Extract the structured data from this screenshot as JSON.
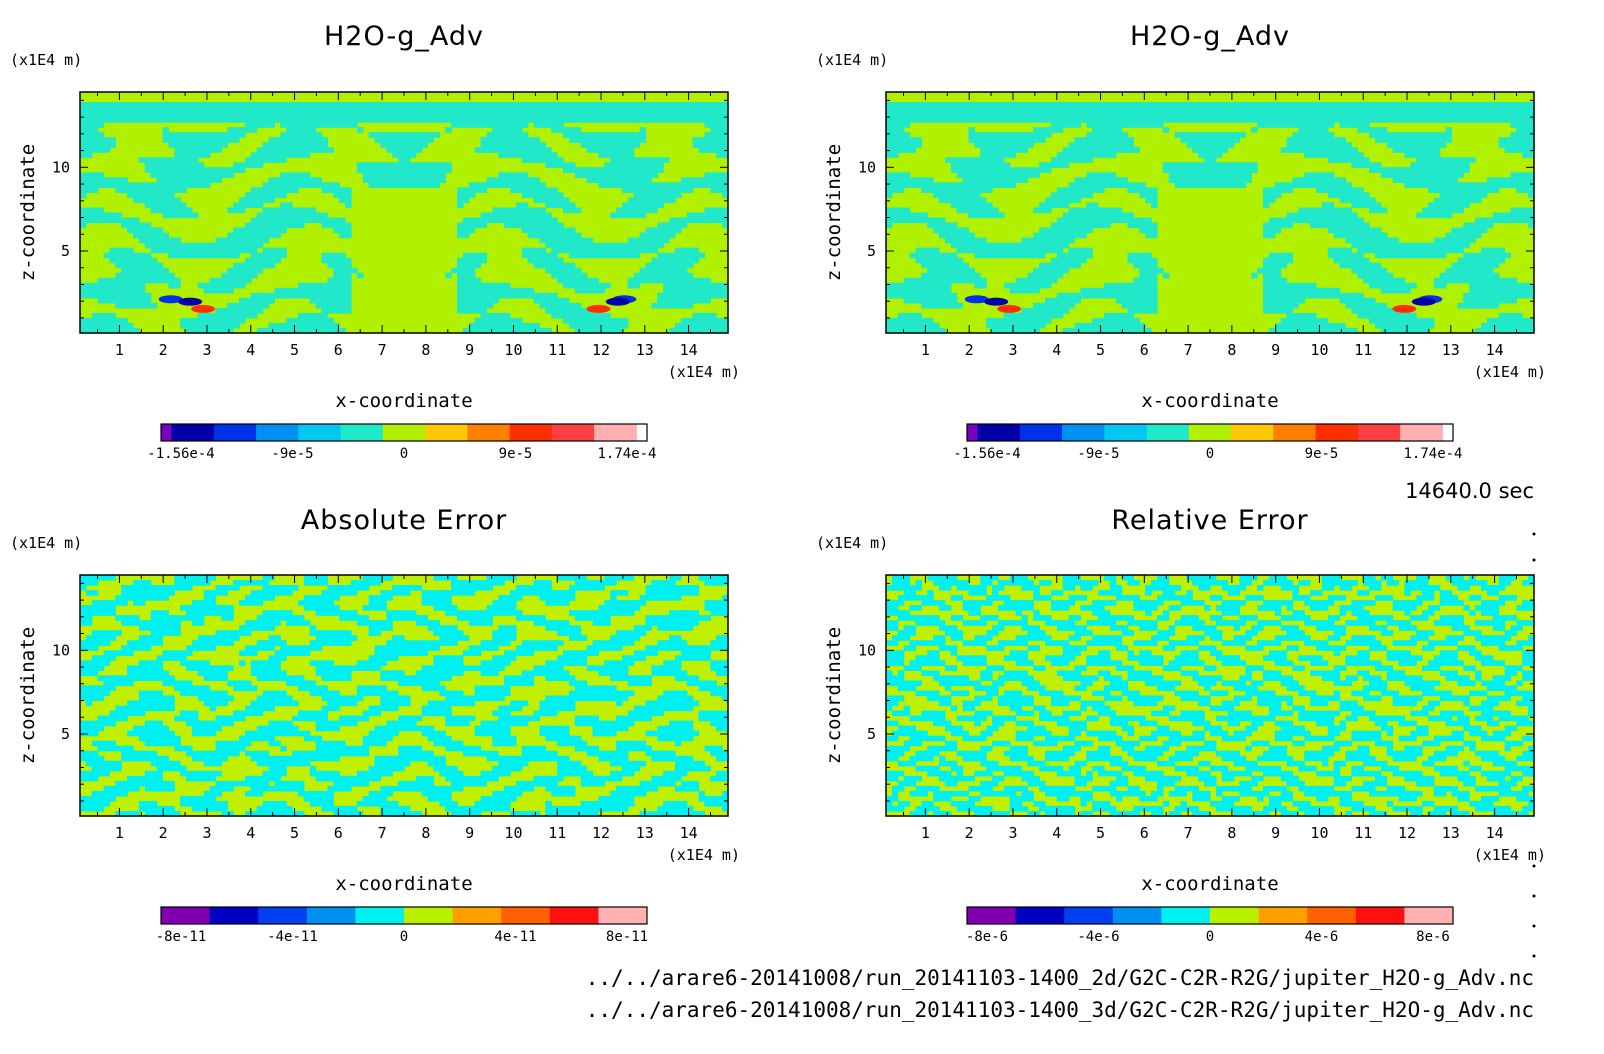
{
  "chart_data": [
    {
      "type": "heatmap",
      "title": "H2O-g_Adv",
      "xlabel": "x-coordinate",
      "ylabel": "z-coordinate",
      "x_unit": "(x1E4 m)",
      "y_unit": "(x1E4 m)",
      "xlim": [
        0.1,
        14.9
      ],
      "ylim": [
        0.1,
        14.5
      ],
      "x_ticks": [
        "1",
        "2",
        "3",
        "4",
        "5",
        "6",
        "7",
        "8",
        "9",
        "10",
        "11",
        "12",
        "13",
        "14"
      ],
      "y_ticks": [
        "5",
        "10"
      ],
      "pattern": "field",
      "colorbar": {
        "colors": [
          "#7a00c0",
          "#0000a8",
          "#0030e8",
          "#0090f0",
          "#00c8f0",
          "#20e8c8",
          "#b0f000",
          "#ffc800",
          "#ff8000",
          "#ff3000",
          "#ff4040",
          "#ffb0b0"
        ],
        "labels": [
          "-1.56e-4",
          "-9e-5",
          "0",
          "9e-5",
          "1.74e-4"
        ]
      }
    },
    {
      "type": "heatmap",
      "title": "H2O-g_Adv",
      "xlabel": "x-coordinate",
      "ylabel": "z-coordinate",
      "x_unit": "(x1E4 m)",
      "y_unit": "(x1E4 m)",
      "xlim": [
        0.1,
        14.9
      ],
      "ylim": [
        0.1,
        14.5
      ],
      "x_ticks": [
        "1",
        "2",
        "3",
        "4",
        "5",
        "6",
        "7",
        "8",
        "9",
        "10",
        "11",
        "12",
        "13",
        "14"
      ],
      "y_ticks": [
        "5",
        "10"
      ],
      "pattern": "field",
      "colorbar": {
        "colors": [
          "#7a00c0",
          "#0000a8",
          "#0030e8",
          "#0090f0",
          "#00c8f0",
          "#20e8c8",
          "#b0f000",
          "#ffc800",
          "#ff8000",
          "#ff3000",
          "#ff4040",
          "#ffb0b0"
        ],
        "labels": [
          "-1.56e-4",
          "-9e-5",
          "0",
          "9e-5",
          "1.74e-4"
        ]
      }
    },
    {
      "type": "heatmap",
      "title": "Absolute Error",
      "xlabel": "x-coordinate",
      "ylabel": "z-coordinate",
      "x_unit": "(x1E4 m)",
      "y_unit": "(x1E4 m)",
      "xlim": [
        0.1,
        14.9
      ],
      "ylim": [
        0.1,
        14.5
      ],
      "x_ticks": [
        "1",
        "2",
        "3",
        "4",
        "5",
        "6",
        "7",
        "8",
        "9",
        "10",
        "11",
        "12",
        "13",
        "14"
      ],
      "y_ticks": [
        "5",
        "10"
      ],
      "pattern": "error",
      "colorbar": {
        "colors": [
          "#8000b0",
          "#0000c0",
          "#0040f0",
          "#0090f0",
          "#00f0f0",
          "#b8f000",
          "#ffa000",
          "#ff6000",
          "#ff1010",
          "#ffb0b0"
        ],
        "labels": [
          "-8e-11",
          "-4e-11",
          "0",
          "4e-11",
          "8e-11"
        ]
      }
    },
    {
      "type": "heatmap",
      "title": "Relative Error",
      "xlabel": "x-coordinate",
      "ylabel": "z-coordinate",
      "x_unit": "(x1E4 m)",
      "y_unit": "(x1E4 m)",
      "xlim": [
        0.1,
        14.9
      ],
      "ylim": [
        0.1,
        14.5
      ],
      "x_ticks": [
        "1",
        "2",
        "3",
        "4",
        "5",
        "6",
        "7",
        "8",
        "9",
        "10",
        "11",
        "12",
        "13",
        "14"
      ],
      "y_ticks": [
        "5",
        "10"
      ],
      "pattern": "error2",
      "colorbar": {
        "colors": [
          "#8000b0",
          "#0000c0",
          "#0040f0",
          "#0090f0",
          "#00f0f0",
          "#b8f000",
          "#ffa000",
          "#ff6000",
          "#ff1010",
          "#ffb0b0"
        ],
        "labels": [
          "-8e-6",
          "-4e-6",
          "0",
          "4e-6",
          "8e-6"
        ]
      }
    }
  ],
  "time_label": "14640.0 sec",
  "footer": {
    "line1": "../../arare6-20141008/run_20141103-1400_2d/G2C-C2R-R2G/jupiter_H2O-g_Adv.nc",
    "line2": "../../arare6-20141008/run_20141103-1400_3d/G2C-C2R-R2G/jupiter_H2O-g_Adv.nc"
  }
}
